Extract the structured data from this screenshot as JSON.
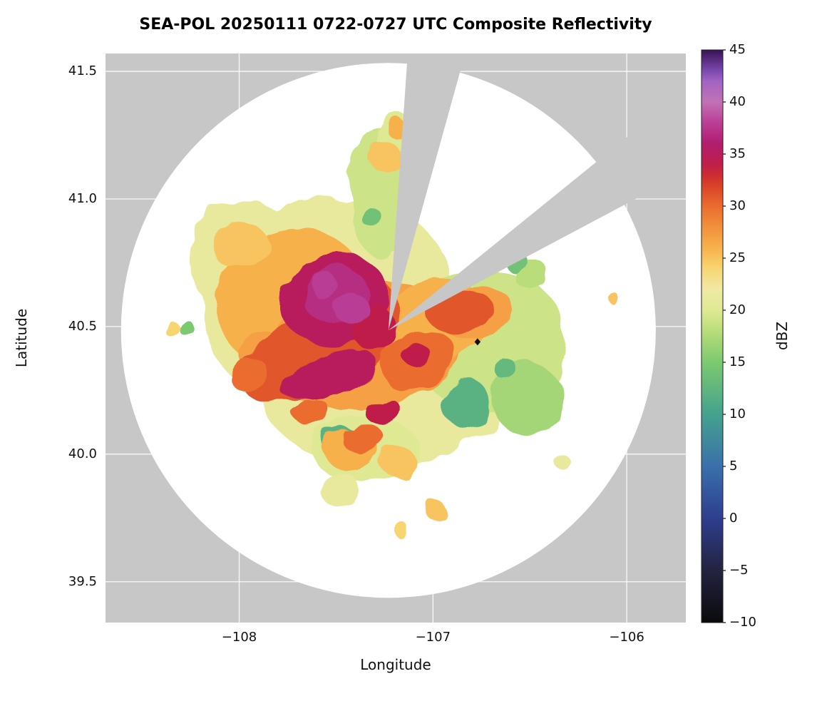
{
  "chart_data": {
    "type": "heatmap",
    "title": "SEA-POL 20250111 0722-0727 UTC Composite Reflectivity",
    "xlabel": "Longitude",
    "ylabel": "Latitude",
    "colorbar_label": "dBZ",
    "xlim": [
      -108.69,
      -105.695
    ],
    "ylim": [
      39.34,
      41.57
    ],
    "x_ticks": [
      -108,
      -107,
      -106
    ],
    "y_ticks": [
      39.5,
      40.0,
      40.5,
      41.0,
      41.5
    ],
    "colorbar_ticks": [
      -10,
      -5,
      0,
      5,
      10,
      15,
      20,
      25,
      30,
      35,
      40,
      45
    ],
    "colorbar_range": [
      -10,
      45
    ],
    "grid": true,
    "legend_position": "right-colorbar",
    "colors": {
      "no_data_gray": "#c7c7c7",
      "coverage_white": "#ffffff",
      "grid_white": "#ffffff",
      "marker_black": "#111111",
      "colorbar_outline": "#222222"
    },
    "colormap": [
      {
        "dbz": -10,
        "color": "#0a0a0c"
      },
      {
        "dbz": -5,
        "color": "#23233f"
      },
      {
        "dbz": 0,
        "color": "#2d3e8e"
      },
      {
        "dbz": 5,
        "color": "#3a70ab"
      },
      {
        "dbz": 10,
        "color": "#44a28e"
      },
      {
        "dbz": 15,
        "color": "#7cc970"
      },
      {
        "dbz": 18,
        "color": "#b8dd7a"
      },
      {
        "dbz": 20,
        "color": "#dfe993"
      },
      {
        "dbz": 22,
        "color": "#f0e9a5"
      },
      {
        "dbz": 24,
        "color": "#f7d672"
      },
      {
        "dbz": 26,
        "color": "#f7b14c"
      },
      {
        "dbz": 28,
        "color": "#f28f3c"
      },
      {
        "dbz": 30,
        "color": "#ea6c2e"
      },
      {
        "dbz": 32,
        "color": "#d84228"
      },
      {
        "dbz": 33,
        "color": "#cb2c31"
      },
      {
        "dbz": 34,
        "color": "#c01f48"
      },
      {
        "dbz": 36,
        "color": "#b21d6e"
      },
      {
        "dbz": 38,
        "color": "#ba3e95"
      },
      {
        "dbz": 40,
        "color": "#c172b5"
      },
      {
        "dbz": 42,
        "color": "#a263c2"
      },
      {
        "dbz": 43,
        "color": "#7b49ae"
      },
      {
        "dbz": 45,
        "color": "#371257"
      }
    ],
    "coverage": {
      "center_lon": -107.23,
      "center_lat": 40.485,
      "radius_lon_deg": 1.38
    },
    "blocked_sectors": [
      {
        "az_start": 4,
        "az_end": 15.5
      },
      {
        "az_start": 51,
        "az_end": 62
      }
    ],
    "marker": {
      "lon": -106.77,
      "lat": 40.44,
      "shape": "diamond",
      "color": "#111111"
    },
    "regions_format": [
      "lon",
      "lat",
      "rx_deg",
      "ry_deg",
      "rotation_deg",
      "dbz"
    ],
    "regions": [
      [
        -107.55,
        40.6,
        0.65,
        0.4,
        -15,
        21
      ],
      [
        -107.2,
        40.32,
        0.7,
        0.36,
        -10,
        21
      ],
      [
        -107.95,
        40.76,
        0.32,
        0.22,
        10,
        21
      ],
      [
        -106.72,
        40.45,
        0.4,
        0.28,
        0,
        19
      ],
      [
        -107.25,
        41.02,
        0.18,
        0.26,
        0,
        19
      ],
      [
        -107.18,
        41.24,
        0.1,
        0.09,
        0,
        20
      ],
      [
        -107.35,
        40.02,
        0.28,
        0.13,
        0,
        20
      ],
      [
        -107.48,
        39.86,
        0.1,
        0.07,
        0,
        21
      ],
      [
        -106.52,
        40.22,
        0.18,
        0.14,
        0,
        17
      ],
      [
        -106.5,
        40.71,
        0.09,
        0.06,
        0,
        18
      ],
      [
        -106.32,
        39.96,
        0.04,
        0.03,
        0,
        21
      ],
      [
        -106.83,
        40.2,
        0.12,
        0.1,
        0,
        12
      ],
      [
        -107.47,
        40.05,
        0.1,
        0.06,
        0,
        12
      ],
      [
        -106.62,
        40.33,
        0.06,
        0.04,
        0,
        13
      ],
      [
        -106.58,
        40.76,
        0.06,
        0.04,
        0,
        14
      ],
      [
        -107.32,
        40.93,
        0.05,
        0.04,
        0,
        14
      ],
      [
        -108.28,
        40.5,
        0.04,
        0.03,
        0,
        15
      ],
      [
        -107.72,
        40.6,
        0.4,
        0.28,
        -15,
        26
      ],
      [
        -107.33,
        40.42,
        0.52,
        0.24,
        -12,
        27
      ],
      [
        -106.98,
        40.52,
        0.28,
        0.16,
        -8,
        26
      ],
      [
        -106.77,
        40.55,
        0.2,
        0.1,
        -5,
        27
      ],
      [
        -108.0,
        40.82,
        0.15,
        0.09,
        0,
        25
      ],
      [
        -107.88,
        40.4,
        0.12,
        0.07,
        -20,
        27
      ],
      [
        -107.24,
        41.16,
        0.08,
        0.06,
        0,
        25
      ],
      [
        -107.18,
        41.27,
        0.05,
        0.04,
        0,
        26
      ],
      [
        -107.42,
        40.02,
        0.15,
        0.08,
        0,
        26
      ],
      [
        -107.18,
        39.97,
        0.09,
        0.06,
        0,
        25
      ],
      [
        -107.0,
        39.79,
        0.05,
        0.04,
        0,
        25
      ],
      [
        -107.16,
        39.7,
        0.04,
        0.03,
        0,
        24
      ],
      [
        -108.36,
        40.5,
        0.04,
        0.03,
        0,
        24
      ],
      [
        -106.08,
        40.62,
        0.03,
        0.02,
        0,
        25
      ],
      [
        -107.62,
        40.37,
        0.4,
        0.15,
        -17,
        31
      ],
      [
        -107.45,
        40.54,
        0.28,
        0.18,
        -10,
        31
      ],
      [
        -107.08,
        40.37,
        0.2,
        0.11,
        -25,
        30
      ],
      [
        -106.86,
        40.56,
        0.18,
        0.08,
        -5,
        31
      ],
      [
        -107.36,
        40.06,
        0.11,
        0.06,
        0,
        30
      ],
      [
        -107.62,
        40.16,
        0.09,
        0.05,
        -20,
        30
      ],
      [
        -107.96,
        40.32,
        0.1,
        0.05,
        -30,
        30
      ],
      [
        -107.5,
        40.6,
        0.28,
        0.18,
        -12,
        35
      ],
      [
        -107.54,
        40.31,
        0.26,
        0.08,
        -18,
        35
      ],
      [
        -107.3,
        40.49,
        0.11,
        0.09,
        0,
        34
      ],
      [
        -107.26,
        40.17,
        0.09,
        0.05,
        -15,
        34
      ],
      [
        -107.1,
        40.4,
        0.07,
        0.04,
        -20,
        34
      ],
      [
        -107.5,
        40.62,
        0.17,
        0.11,
        -12,
        37
      ],
      [
        -107.42,
        40.57,
        0.09,
        0.06,
        0,
        38
      ],
      [
        -107.56,
        40.66,
        0.07,
        0.05,
        0,
        38
      ]
    ]
  }
}
